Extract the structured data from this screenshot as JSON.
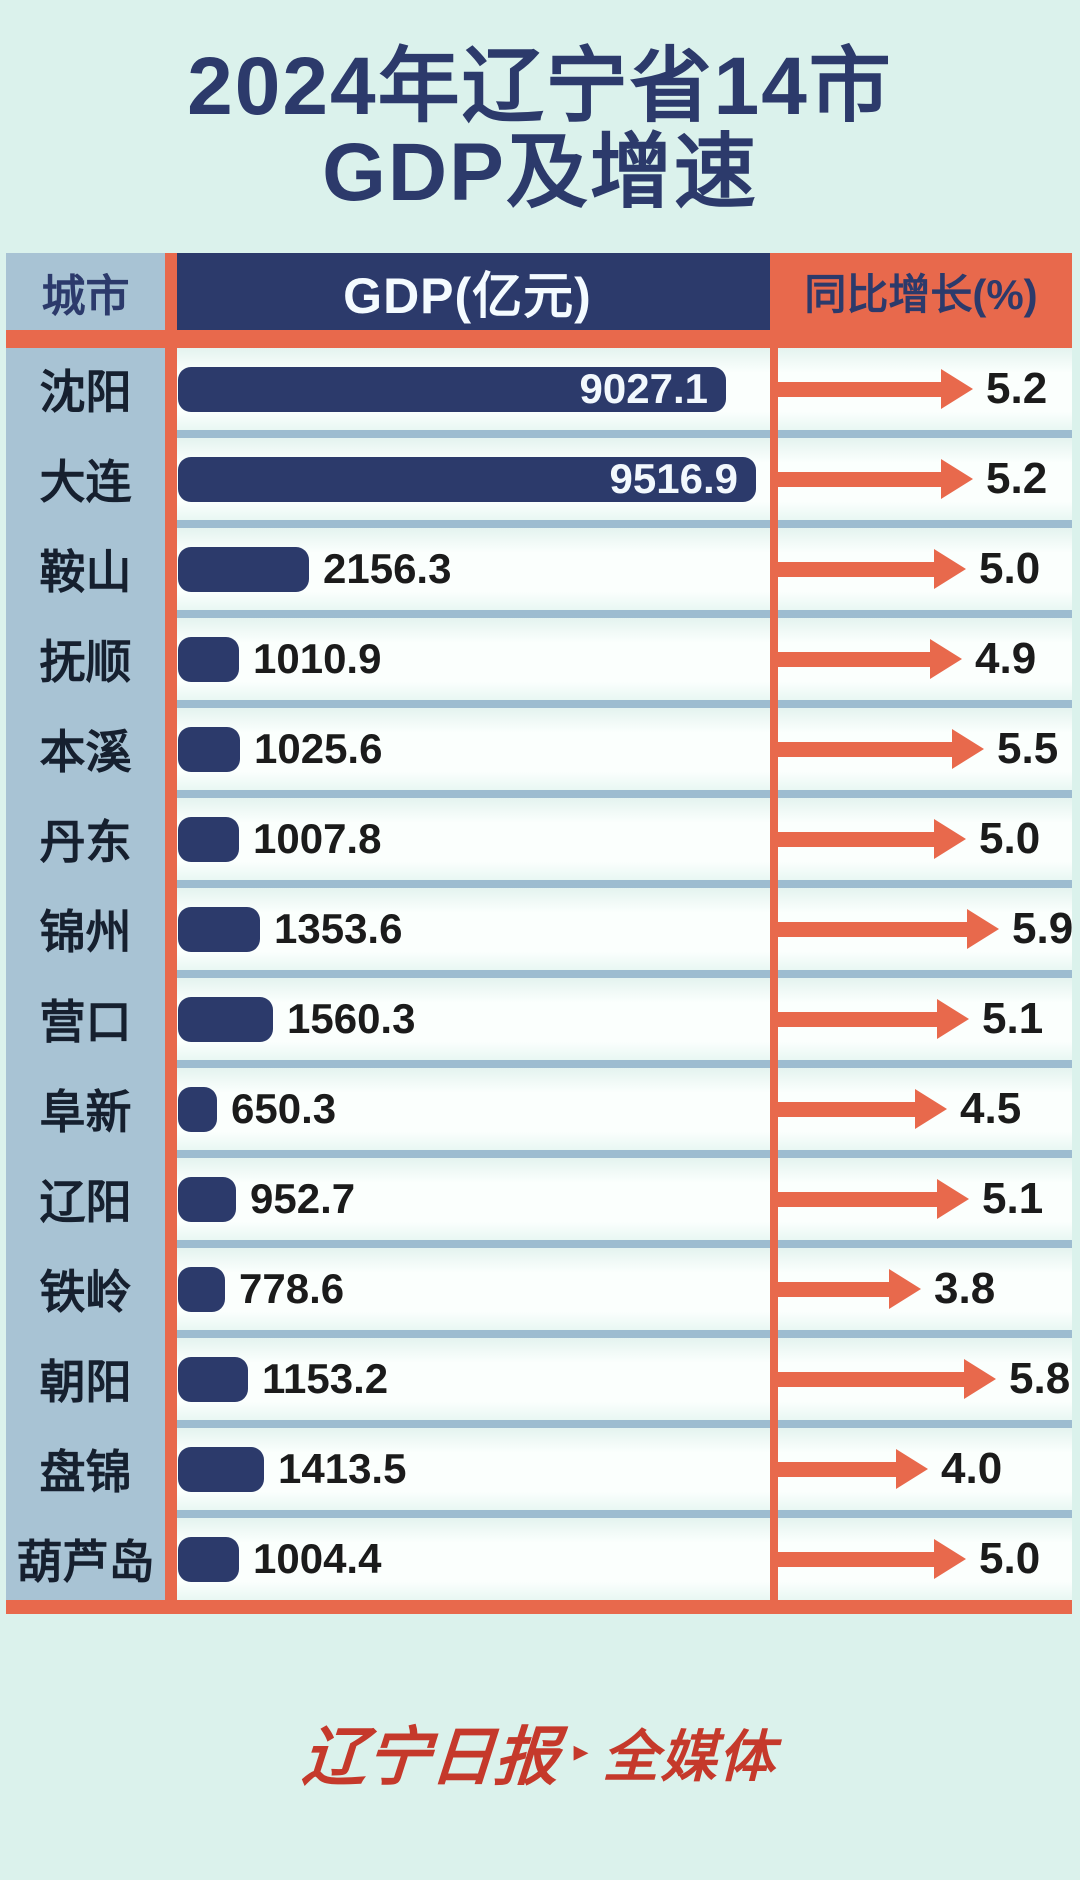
{
  "title": {
    "line1": "2024年辽宁省14市",
    "line2": "GDP及增速"
  },
  "table": {
    "headers": {
      "city": "城市",
      "gdp": "GDP(亿元)",
      "growth": "同比增长(%)"
    },
    "rows": [
      {
        "city": "沈阳",
        "gdp": 9027.1,
        "growth": 5.2
      },
      {
        "city": "大连",
        "gdp": 9516.9,
        "growth": 5.2
      },
      {
        "city": "鞍山",
        "gdp": 2156.3,
        "growth": 5.0
      },
      {
        "city": "抚顺",
        "gdp": 1010.9,
        "growth": 4.9
      },
      {
        "city": "本溪",
        "gdp": 1025.6,
        "growth": 5.5
      },
      {
        "city": "丹东",
        "gdp": 1007.8,
        "growth": 5.0
      },
      {
        "city": "锦州",
        "gdp": 1353.6,
        "growth": 5.9
      },
      {
        "city": "营口",
        "gdp": 1560.3,
        "growth": 5.1
      },
      {
        "city": "阜新",
        "gdp": 650.3,
        "growth": 4.5
      },
      {
        "city": "辽阳",
        "gdp": 952.7,
        "growth": 5.1
      },
      {
        "city": "铁岭",
        "gdp": 778.6,
        "growth": 3.8
      },
      {
        "city": "朝阳",
        "gdp": 1153.2,
        "growth": 5.8
      },
      {
        "city": "盘锦",
        "gdp": 1413.5,
        "growth": 4.0
      },
      {
        "city": "葫芦岛",
        "gdp": 1004.4,
        "growth": 5.0
      }
    ]
  },
  "footer": {
    "brand_script": "辽宁日报",
    "brand_sep": "▸",
    "brand_suffix": "全媒体"
  },
  "colors": {
    "page_bg": "#dbf2ec",
    "navy": "#2c3a6b",
    "accent": "#e8694c",
    "city_col": "#a8c3d4",
    "separator": "#9dbcd0",
    "text_dark": "#1b1b1b",
    "brand_red": "#c5392b"
  },
  "chart_data": {
    "type": "bar",
    "orientation": "horizontal",
    "title": "2024年辽宁省14市GDP及增速",
    "categories": [
      "沈阳",
      "大连",
      "鞍山",
      "抚顺",
      "本溪",
      "丹东",
      "锦州",
      "营口",
      "阜新",
      "辽阳",
      "铁岭",
      "朝阳",
      "盘锦",
      "葫芦岛"
    ],
    "series": [
      {
        "name": "GDP(亿元)",
        "values": [
          9027.1,
          9516.9,
          2156.3,
          1010.9,
          1025.6,
          1007.8,
          1353.6,
          1560.3,
          650.3,
          952.7,
          778.6,
          1153.2,
          1413.5,
          1004.4
        ]
      },
      {
        "name": "同比增长(%)",
        "values": [
          5.2,
          5.2,
          5.0,
          4.9,
          5.5,
          5.0,
          5.9,
          5.1,
          4.5,
          5.1,
          3.8,
          5.8,
          4.0,
          5.0
        ]
      }
    ],
    "value_labels": true,
    "grid": false,
    "legend_position": "none"
  }
}
